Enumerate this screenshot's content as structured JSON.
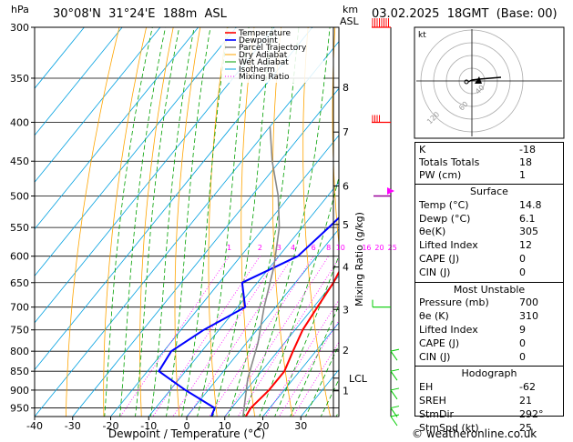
{
  "header": {
    "hpa_label": "hPa",
    "location": "30°08'N  31°24'E  188m  ASL",
    "km_label": "km",
    "asl_label": "ASL",
    "datetime": "03.02.2025  18GMT  (Base: 00)"
  },
  "footer": {
    "credit": "© weatheronline.co.uk"
  },
  "colors": {
    "temperature": "#ff0000",
    "dewpoint": "#0000ff",
    "parcel": "#888888",
    "dry_adiabat": "#ffa500",
    "wet_adiabat": "#00a000",
    "isotherm": "#00a0e0",
    "mixing_ratio": "#ff00ff",
    "wind_barbs": "#ff0000",
    "wind_low": "#00cc00"
  },
  "chart_data": {
    "type": "line",
    "title": "",
    "xlabel": "Dewpoint / Temperature (°C)",
    "ylabel_right": "Mixing Ratio (g/kg)",
    "x_ticks": [
      -40,
      -30,
      -20,
      -10,
      0,
      10,
      20,
      30
    ],
    "pressure_levels": [
      300,
      350,
      400,
      450,
      500,
      550,
      600,
      650,
      700,
      750,
      800,
      850,
      900,
      950
    ],
    "x_range": [
      -40,
      40
    ],
    "p_range": [
      300,
      1000
    ],
    "km_ticks": [
      {
        "label": "8",
        "p": 360
      },
      {
        "label": "7",
        "p": 412
      },
      {
        "label": "6",
        "p": 485
      },
      {
        "label": "5",
        "p": 545
      },
      {
        "label": "4",
        "p": 620
      },
      {
        "label": "3",
        "p": 705
      },
      {
        "label": "2",
        "p": 797
      },
      {
        "label": "LCL",
        "p": 868
      },
      {
        "label": "1",
        "p": 902
      }
    ],
    "mixing_ratio_labels": [
      "1",
      "2",
      "3",
      "4",
      "6",
      "8",
      "10",
      "16",
      "20",
      "25"
    ],
    "mixing_ratio_values": [
      1,
      2,
      3,
      4,
      6,
      8,
      10,
      16,
      20,
      25
    ],
    "legend": [
      "Temperature",
      "Dewpoint",
      "Parcel Trajectory",
      "Dry Adiabat",
      "Wet Adiabat",
      "Isotherm",
      "Mixing Ratio"
    ],
    "series": [
      {
        "name": "Temperature",
        "points": [
          [
            15.5,
            975
          ],
          [
            15,
            950
          ],
          [
            16,
            900
          ],
          [
            16,
            850
          ],
          [
            14,
            800
          ],
          [
            12,
            750
          ],
          [
            11,
            700
          ],
          [
            10,
            650
          ],
          [
            8,
            600
          ],
          [
            5,
            550
          ],
          [
            2.8,
            500
          ],
          [
            1.5,
            450
          ],
          [
            0,
            400
          ],
          [
            -1,
            350
          ],
          [
            -2.5,
            300
          ]
        ]
      },
      {
        "name": "Dewpoint",
        "points": [
          [
            6.5,
            975
          ],
          [
            5.5,
            950
          ],
          [
            -6,
            900
          ],
          [
            -17,
            850
          ],
          [
            -18,
            800
          ],
          [
            -14,
            750
          ],
          [
            -8,
            700
          ],
          [
            -14,
            650
          ],
          [
            -5,
            600
          ],
          [
            -3,
            550
          ],
          [
            -1,
            500
          ],
          [
            0,
            450
          ],
          [
            -8,
            400
          ],
          [
            -1.5,
            350
          ],
          [
            -2,
            300
          ]
        ]
      },
      {
        "name": "Parcel Trajectory",
        "points": [
          [
            14.8,
            975
          ],
          [
            8,
            870
          ],
          [
            3,
            780
          ],
          [
            -3,
            700
          ],
          [
            -9,
            620
          ],
          [
            -16,
            550
          ],
          [
            -23,
            500
          ],
          [
            -32,
            450
          ],
          [
            -40,
            405
          ]
        ]
      }
    ]
  },
  "km_axis_labels": [
    "8",
    "7",
    "6",
    "5",
    "4",
    "3",
    "2",
    "LCL",
    "1"
  ],
  "hodograph": {
    "label": "kt",
    "ring_labels": [
      "40",
      "60",
      "120"
    ]
  },
  "indices": {
    "K_label": "K",
    "K_value": "-18",
    "TT_label": "Totals Totals",
    "TT_value": "18",
    "PW_label": "PW (cm)",
    "PW_value": "1"
  },
  "surface": {
    "title": "Surface",
    "rows": [
      {
        "label": "Temp (°C)",
        "value": "14.8"
      },
      {
        "label": "Dewp (°C)",
        "value": "6.1"
      },
      {
        "label": "θe(K)",
        "value": "305"
      },
      {
        "label": "Lifted Index",
        "value": "12"
      },
      {
        "label": "CAPE (J)",
        "value": "0"
      },
      {
        "label": "CIN (J)",
        "value": "0"
      }
    ]
  },
  "most_unstable": {
    "title": "Most Unstable",
    "rows": [
      {
        "label": "Pressure (mb)",
        "value": "700"
      },
      {
        "label": "θe (K)",
        "value": "310"
      },
      {
        "label": "Lifted Index",
        "value": "9"
      },
      {
        "label": "CAPE (J)",
        "value": "0"
      },
      {
        "label": "CIN (J)",
        "value": "0"
      }
    ]
  },
  "hodograph_table": {
    "title": "Hodograph",
    "rows": [
      {
        "label": "EH",
        "value": "-62"
      },
      {
        "label": "SREH",
        "value": "21"
      },
      {
        "label": "StmDir",
        "value": "292°"
      },
      {
        "label": "StmSpd (kt)",
        "value": "25"
      }
    ]
  }
}
